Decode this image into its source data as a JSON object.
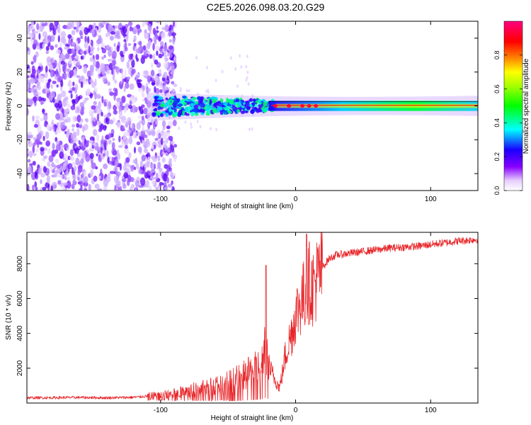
{
  "title": "C2E5.2026.098.03.20.G29",
  "colors": {
    "snr_line": "#e8262a",
    "frame": "#000000"
  },
  "chart_data": [
    {
      "type": "heatmap",
      "name": "spectrogram",
      "xlabel": "Height of straight line (km)",
      "ylabel": "Frequency (Hz)",
      "xlim": [
        -199,
        135
      ],
      "ylim": [
        -50,
        50
      ],
      "xticks": [
        -100,
        0,
        100
      ],
      "xtick_labels": [
        "-100",
        "0",
        "100"
      ],
      "yticks": [
        -40,
        -20,
        0,
        20,
        40
      ],
      "ytick_labels": [
        "-40",
        "-20",
        "0",
        "20",
        "40"
      ],
      "description_points": {
        "noise_region_x": [
          -199,
          -95
        ],
        "band_center_hz": 0,
        "band_strong_start_x": -20
      },
      "colorbar": {
        "label": "Normalized spectral amplitude",
        "range": [
          0,
          1
        ],
        "ticks": [
          0.0,
          0.2,
          0.4,
          0.6,
          0.8
        ],
        "tick_labels": [
          "0.0",
          "0.2",
          "0.4",
          "0.6",
          "0.8"
        ],
        "colormap": [
          "#ffffff",
          "#e3c9ff",
          "#8800ff",
          "#0000ff",
          "#00ffff",
          "#00ff00",
          "#ffff00",
          "#ff8800",
          "#ff0000",
          "#ff0088"
        ]
      }
    },
    {
      "type": "line",
      "name": "snr",
      "xlabel": "Height of straight line (km)",
      "ylabel": "SNR (10 * v/v)",
      "xlim": [
        -199,
        135
      ],
      "ylim": [
        0,
        9800
      ],
      "xticks": [
        -100,
        0,
        100
      ],
      "xtick_labels": [
        "-100",
        "0",
        "100"
      ],
      "yticks": [
        2000,
        4000,
        6000,
        8000
      ],
      "ytick_labels": [
        "2000",
        "4000",
        "6000",
        "8000"
      ],
      "x": [
        -199,
        -180,
        -160,
        -140,
        -120,
        -100,
        -90,
        -80,
        -70,
        -60,
        -50,
        -45,
        -40,
        -35,
        -30,
        -25,
        -22,
        -20,
        -18,
        -15,
        -12,
        -10,
        -8,
        -5,
        -2,
        0,
        2,
        5,
        8,
        10,
        12,
        15,
        20,
        25,
        30,
        40,
        50,
        60,
        70,
        80,
        90,
        100,
        110,
        120,
        135
      ],
      "y": [
        300,
        310,
        320,
        300,
        330,
        450,
        550,
        700,
        850,
        1000,
        1200,
        1350,
        1500,
        1700,
        1900,
        2300,
        3200,
        2200,
        1800,
        1300,
        900,
        1600,
        2600,
        3500,
        4300,
        5100,
        5500,
        6000,
        6400,
        7000,
        6600,
        7000,
        7800,
        8300,
        8500,
        8600,
        8700,
        8800,
        8900,
        8950,
        9000,
        9100,
        9200,
        9300,
        9400
      ],
      "peaks": [
        {
          "x": -22,
          "y": 7900
        },
        {
          "x": 8,
          "y": 9700
        }
      ]
    }
  ]
}
